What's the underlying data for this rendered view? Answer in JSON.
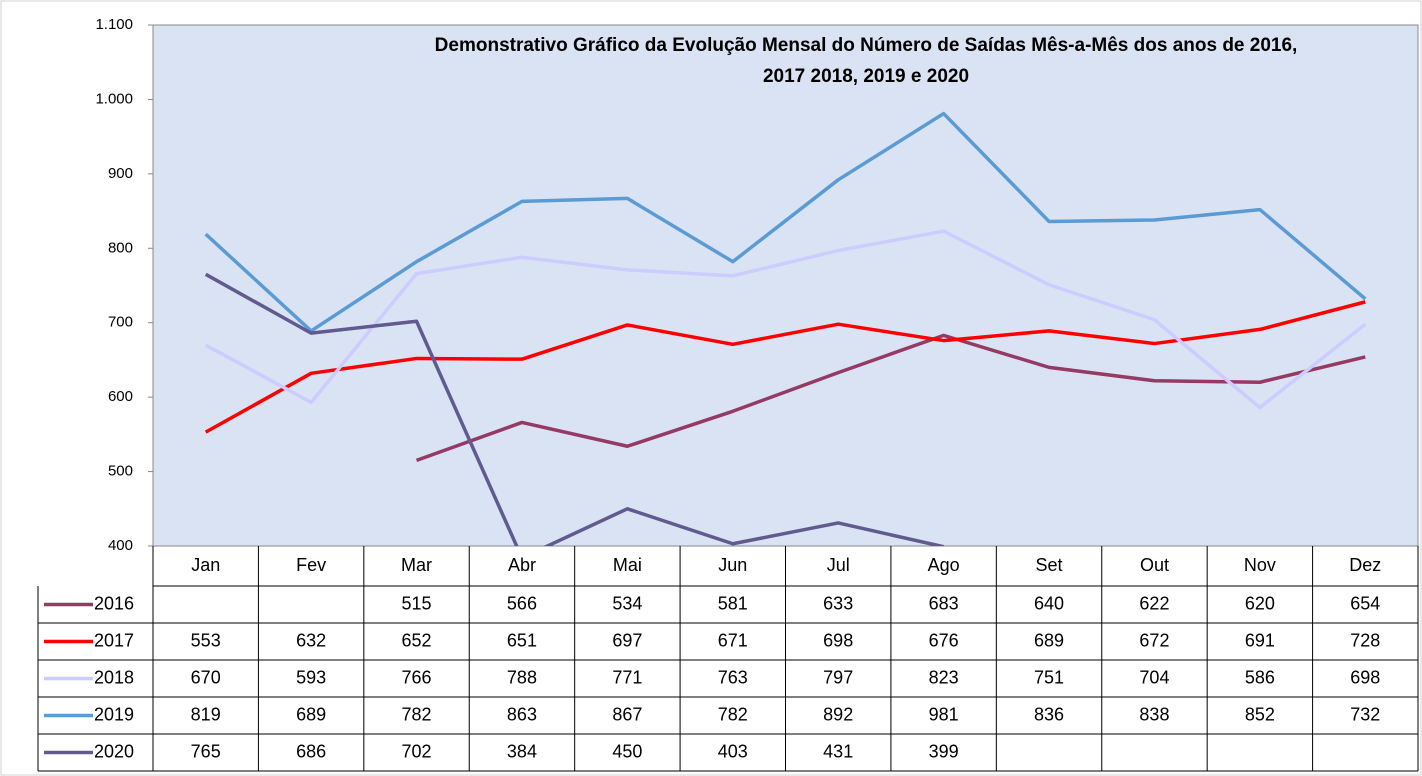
{
  "chart_data": {
    "type": "line",
    "title": [
      "Demonstrativo Gráfico da Evolução Mensal do Número de Saídas Mês-a-Mês dos anos de  2016,",
      "2017 2018, 2019 e 2020"
    ],
    "categories": [
      "Jan",
      "Fev",
      "Mar",
      "Abr",
      "Mai",
      "Jun",
      "Jul",
      "Ago",
      "Set",
      "Out",
      "Nov",
      "Dez"
    ],
    "series": [
      {
        "name": "2016",
        "color": "#953a64",
        "values": [
          null,
          null,
          515,
          566,
          534,
          581,
          633,
          683,
          640,
          622,
          620,
          654
        ]
      },
      {
        "name": "2017",
        "color": "#ff0000",
        "values": [
          553,
          632,
          652,
          651,
          697,
          671,
          698,
          676,
          689,
          672,
          691,
          728
        ]
      },
      {
        "name": "2018",
        "color": "#ccccff",
        "values": [
          670,
          593,
          766,
          788,
          771,
          763,
          797,
          823,
          751,
          704,
          586,
          698
        ]
      },
      {
        "name": "2019",
        "color": "#5b9bd5",
        "values": [
          819,
          689,
          782,
          863,
          867,
          782,
          892,
          981,
          836,
          838,
          852,
          732
        ]
      },
      {
        "name": "2020",
        "color": "#605a8f",
        "values": [
          765,
          686,
          702,
          384,
          450,
          403,
          431,
          399,
          null,
          null,
          null,
          null
        ]
      }
    ],
    "ylim": [
      400,
      1100
    ],
    "yticks": [
      400,
      500,
      600,
      700,
      800,
      900,
      {
        "value": 1000,
        "label": "1.000"
      },
      {
        "value": 1100,
        "label": "1.100"
      }
    ],
    "grid": false,
    "background": "#dae3f3"
  }
}
